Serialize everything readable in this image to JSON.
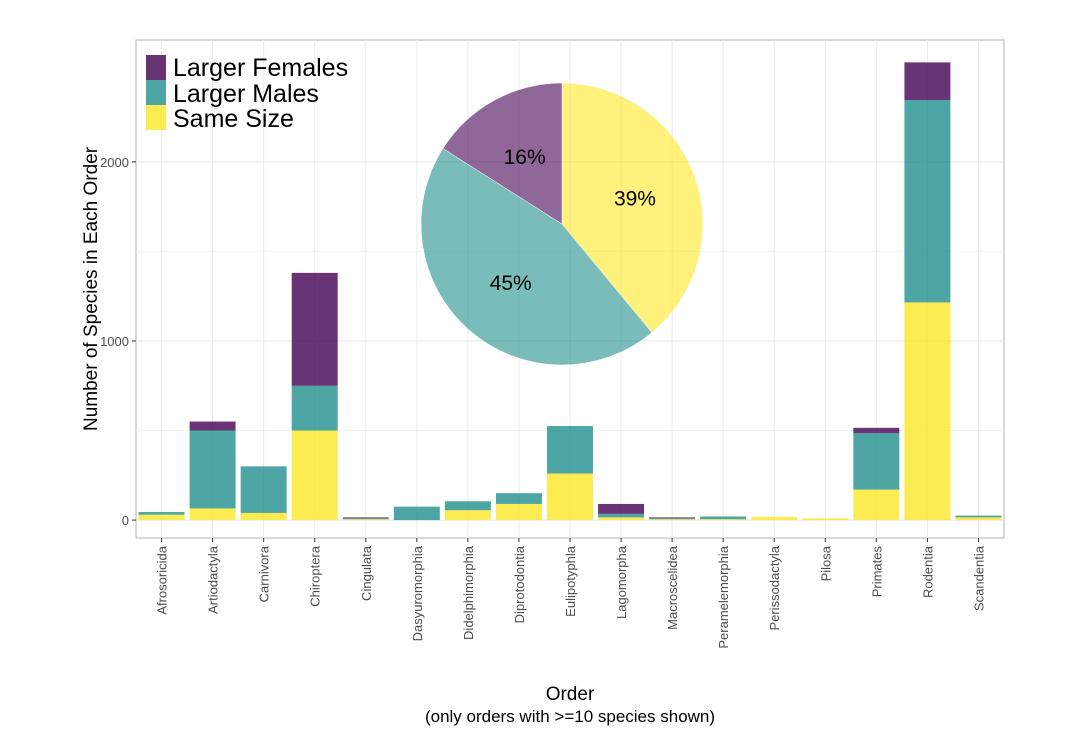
{
  "chart_data": [
    {
      "type": "bar",
      "stacked": true,
      "title": "",
      "xlabel": "Order",
      "xlabel_note": "(only orders with >=10 species shown)",
      "ylabel": "Number of Species in Each Order",
      "ylim": [
        -100,
        2680
      ],
      "yticks": [
        0,
        1000,
        2000
      ],
      "grid": true,
      "legend_position": "top-left",
      "categories": [
        "Afrosoricida",
        "Artiodactyla",
        "Carnivora",
        "Chiroptera",
        "Cingulata",
        "Dasyuromorphia",
        "Didelphimorphia",
        "Diprotodontia",
        "Eulipotyphla",
        "Lagomorpha",
        "Macroscelidea",
        "Peramelemorphia",
        "Perissodactyla",
        "Pilosa",
        "Primates",
        "Rodentia",
        "Scandentia"
      ],
      "series": [
        {
          "name": "Same Size",
          "color": "#fde725",
          "values": [
            30,
            65,
            40,
            500,
            5,
            0,
            55,
            90,
            260,
            15,
            5,
            5,
            18,
            10,
            170,
            1215,
            15
          ]
        },
        {
          "name": "Larger Males",
          "color": "#21908c",
          "values": [
            15,
            435,
            260,
            250,
            5,
            75,
            50,
            60,
            265,
            20,
            5,
            15,
            0,
            0,
            315,
            1130,
            10
          ]
        },
        {
          "name": "Larger Females",
          "color": "#440154",
          "values": [
            0,
            50,
            0,
            630,
            5,
            0,
            0,
            0,
            0,
            55,
            5,
            0,
            0,
            0,
            30,
            210,
            0
          ]
        }
      ]
    },
    {
      "type": "pie",
      "slices": [
        {
          "label": "39%",
          "value": 39,
          "name": "Same Size",
          "color": "#fde725"
        },
        {
          "label": "45%",
          "value": 45,
          "name": "Larger Males",
          "color": "#21908c"
        },
        {
          "label": "16%",
          "value": 16,
          "name": "Larger Females",
          "color": "#440154"
        }
      ]
    }
  ],
  "legend": {
    "items": [
      {
        "label": "Larger Females",
        "color": "#440154"
      },
      {
        "label": "Larger Males",
        "color": "#21908c"
      },
      {
        "label": "Same Size",
        "color": "#fde725"
      }
    ]
  }
}
